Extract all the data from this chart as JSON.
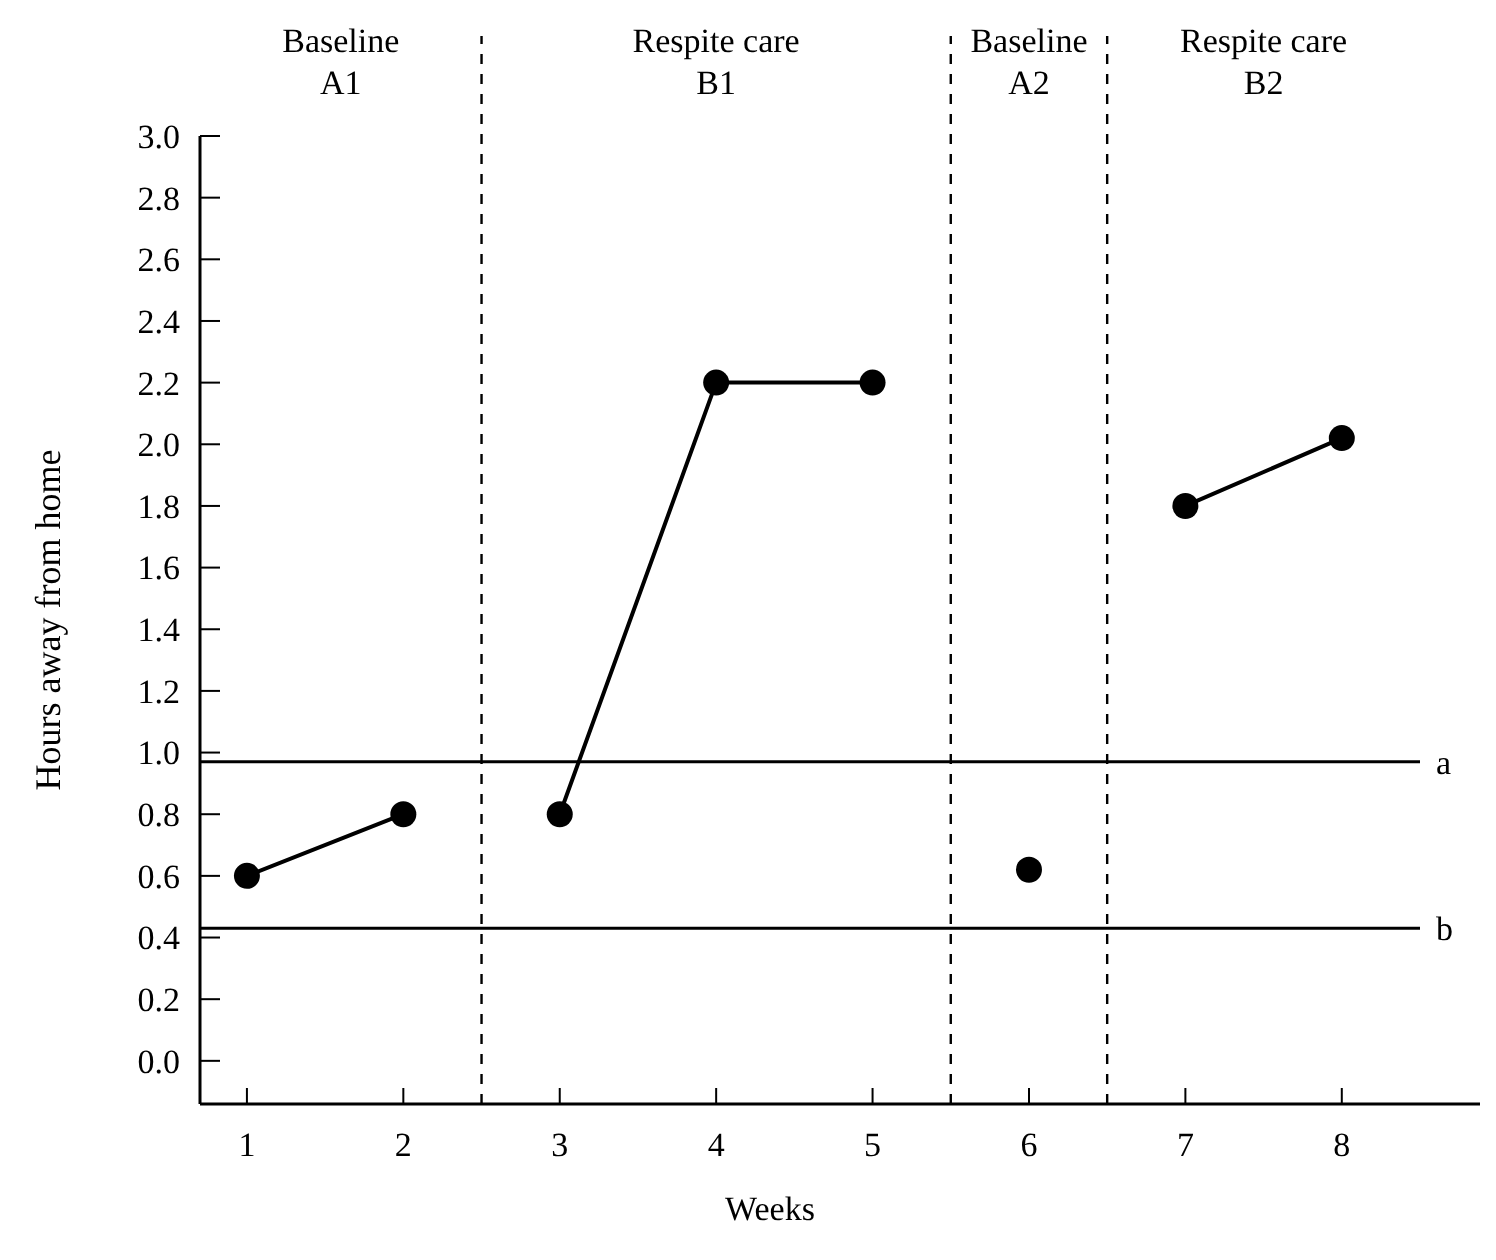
{
  "chart_data": {
    "type": "line",
    "xlabel": "Weeks",
    "ylabel": "Hours away from home",
    "xlim": [
      0.7,
      8.5
    ],
    "xticks": [
      1,
      2,
      3,
      4,
      5,
      6,
      7,
      8
    ],
    "ylim": [
      -0.14,
      3.0
    ],
    "yticks": [
      {
        "value": 0,
        "label": "0.0"
      },
      {
        "value": 0.2,
        "label": "0.2"
      },
      {
        "value": 0.4,
        "label": "0.4"
      },
      {
        "value": 0.6,
        "label": "0.6"
      },
      {
        "value": 0.8,
        "label": "0.8"
      },
      {
        "value": 1,
        "label": "1.0"
      },
      {
        "value": 1.2,
        "label": "1.2"
      },
      {
        "value": 1.4,
        "label": "1.4"
      },
      {
        "value": 1.6,
        "label": "1.6"
      },
      {
        "value": 1.8,
        "label": "1.8"
      },
      {
        "value": 2,
        "label": "2.0"
      },
      {
        "value": 2.2,
        "label": "2.2"
      },
      {
        "value": 2.4,
        "label": "2.4"
      },
      {
        "value": 2.6,
        "label": "2.6"
      },
      {
        "value": 2.8,
        "label": "2.8"
      },
      {
        "value": 3,
        "label": "3.0"
      }
    ],
    "marker": "circle",
    "grid": false,
    "series": [
      {
        "color": "#000000",
        "x": [
          1,
          2
        ],
        "values": [
          0.6,
          0.8
        ]
      },
      {
        "color": "#000000",
        "x": [
          3,
          4,
          5
        ],
        "values": [
          0.8,
          2.2,
          2.2
        ]
      },
      {
        "color": "#000000",
        "x": [
          6
        ],
        "values": [
          0.62
        ]
      },
      {
        "color": "#000000",
        "x": [
          7,
          8
        ],
        "values": [
          1.8,
          2.02
        ]
      }
    ],
    "ref_lines": [
      {
        "axis": "x",
        "value": 2.5,
        "line_style": "dashed"
      },
      {
        "axis": "x",
        "value": 5.5,
        "line_style": "dashed"
      },
      {
        "axis": "x",
        "value": 6.5,
        "line_style": "dashed"
      },
      {
        "axis": "y",
        "value": 0.97,
        "label": "a",
        "line_style": "solid"
      },
      {
        "axis": "y",
        "value": 0.43,
        "label": "b",
        "line_style": "solid"
      }
    ],
    "annotations": [
      "Baseline A1",
      "Respite care B1",
      "Baseline A2",
      "Respite care B2"
    ]
  }
}
